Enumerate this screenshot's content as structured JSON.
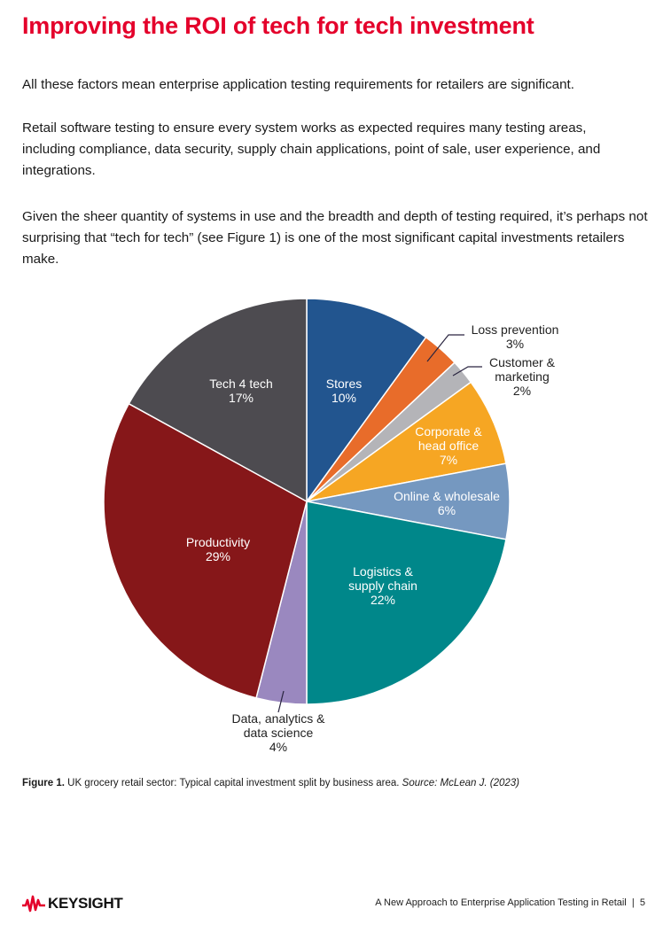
{
  "title": "Improving the ROI of tech for tech investment",
  "paragraphs": [
    "All these factors mean enterprise application testing requirements for retailers are significant.",
    "Retail software testing to ensure every system works as expected requires many testing areas, including compliance, data security, supply chain applications, point of sale, user experience, and integrations.",
    "Given the sheer quantity of systems in use and the breadth and depth of testing required, it’s perhaps not surprising that “tech for tech” (see Figure 1) is one of the most significant capital investments retailers make."
  ],
  "chart_data": {
    "type": "pie",
    "start": "12 o'clock, clockwise",
    "slices": [
      {
        "label": [
          "Stores"
        ],
        "value": 10,
        "pct": "10%",
        "color": "#22558f",
        "text_color": "#ffffff"
      },
      {
        "label": [
          "Loss prevention"
        ],
        "value": 3,
        "pct": "3%",
        "color": "#e86c2a",
        "text_color": "#222222"
      },
      {
        "label": [
          "Customer &",
          "marketing"
        ],
        "value": 2,
        "pct": "2%",
        "color": "#b4b4b8",
        "text_color": "#222222"
      },
      {
        "label": [
          "Corporate &",
          "head office"
        ],
        "value": 7,
        "pct": "7%",
        "color": "#f6a623",
        "text_color": "#ffffff"
      },
      {
        "label": [
          "Online & wholesale"
        ],
        "value": 6,
        "pct": "6%",
        "color": "#7598c0",
        "text_color": "#ffffff"
      },
      {
        "label": [
          "Logistics &",
          "supply chain"
        ],
        "value": 22,
        "pct": "22%",
        "color": "#00878a",
        "text_color": "#ffffff"
      },
      {
        "label": [
          "Data, analytics &",
          "data science"
        ],
        "value": 4,
        "pct": "4%",
        "color": "#9a88bf",
        "text_color": "#222222"
      },
      {
        "label": [
          "Productivity"
        ],
        "value": 29,
        "pct": "29%",
        "color": "#861719",
        "text_color": "#ffffff"
      },
      {
        "label": [
          "Tech 4 tech"
        ],
        "value": 17,
        "pct": "17%",
        "color": "#4d4b50",
        "text_color": "#ffffff"
      }
    ]
  },
  "caption": {
    "figure": "Figure 1.",
    "text": " UK grocery retail sector: Typical capital investment split by business area. ",
    "source": "Source: McLean J. (2023)"
  },
  "footer": {
    "logo": "KEYSIGHT",
    "doc_title": "A New Approach to Enterprise Application Testing in Retail",
    "separator": "|",
    "page": "5"
  },
  "colors": {
    "accent": "#e4002b"
  }
}
